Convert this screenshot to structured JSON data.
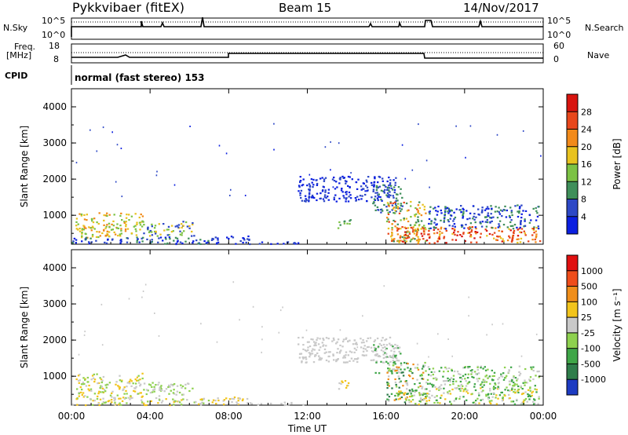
{
  "header": {
    "station": "Pykkvibaer (fitEX)",
    "beam": "Beam 15",
    "date": "14/Nov/2017"
  },
  "side_labels": {
    "nsky": "N.Sky",
    "freq": "Freq.",
    "mhz": "[MHz]",
    "cpid": "CPID",
    "nsearch": "N.Search",
    "nave": "Nave"
  },
  "cpid_text": "normal (fast stereo) 153",
  "ticks": {
    "nsky_left": [
      "10^5",
      "10^0"
    ],
    "nsky_right": [
      "10^5",
      "10^0"
    ],
    "freq_left": [
      "18",
      "8"
    ],
    "nave_right": [
      "60",
      "0"
    ]
  },
  "chart_data": [
    {
      "type": "heatmap",
      "title": "",
      "xlabel": "Time UT",
      "ylabel": "Slant Range [km]",
      "x_ticks": [
        "00:00",
        "04:00",
        "08:00",
        "12:00",
        "16:00",
        "20:00",
        "00:00"
      ],
      "y_ticks": [
        "1000",
        "2000",
        "3000",
        "4000"
      ],
      "ylim": [
        200,
        4500
      ],
      "colorbar": {
        "label": "Power [dB]",
        "ticks": [
          "4",
          "8",
          "12",
          "16",
          "20",
          "24",
          "28"
        ],
        "colors": [
          "#0b1fe0",
          "#2d48c6",
          "#3f8f5a",
          "#7cc244",
          "#e8c21f",
          "#f28a1a",
          "#e8471b",
          "#d8140f"
        ]
      }
    },
    {
      "type": "heatmap",
      "title": "",
      "xlabel": "Time UT",
      "ylabel": "Slant Range [km]",
      "x_ticks": [
        "00:00",
        "04:00",
        "08:00",
        "12:00",
        "16:00",
        "20:00",
        "00:00"
      ],
      "y_ticks": [
        "1000",
        "2000",
        "3000",
        "4000"
      ],
      "ylim": [
        200,
        4500
      ],
      "colorbar": {
        "label": "Velocity [m s⁻¹]",
        "ticks": [
          "1000",
          "500",
          "100",
          "25",
          "-25",
          "-100",
          "-500",
          "-1000"
        ],
        "colors": [
          "#1d3bc2",
          "#2f7d4b",
          "#3fa648",
          "#8ed14f",
          "#c9c9c9",
          "#f2c41c",
          "#f08e1a",
          "#ef4d1a",
          "#e01010"
        ]
      }
    }
  ]
}
